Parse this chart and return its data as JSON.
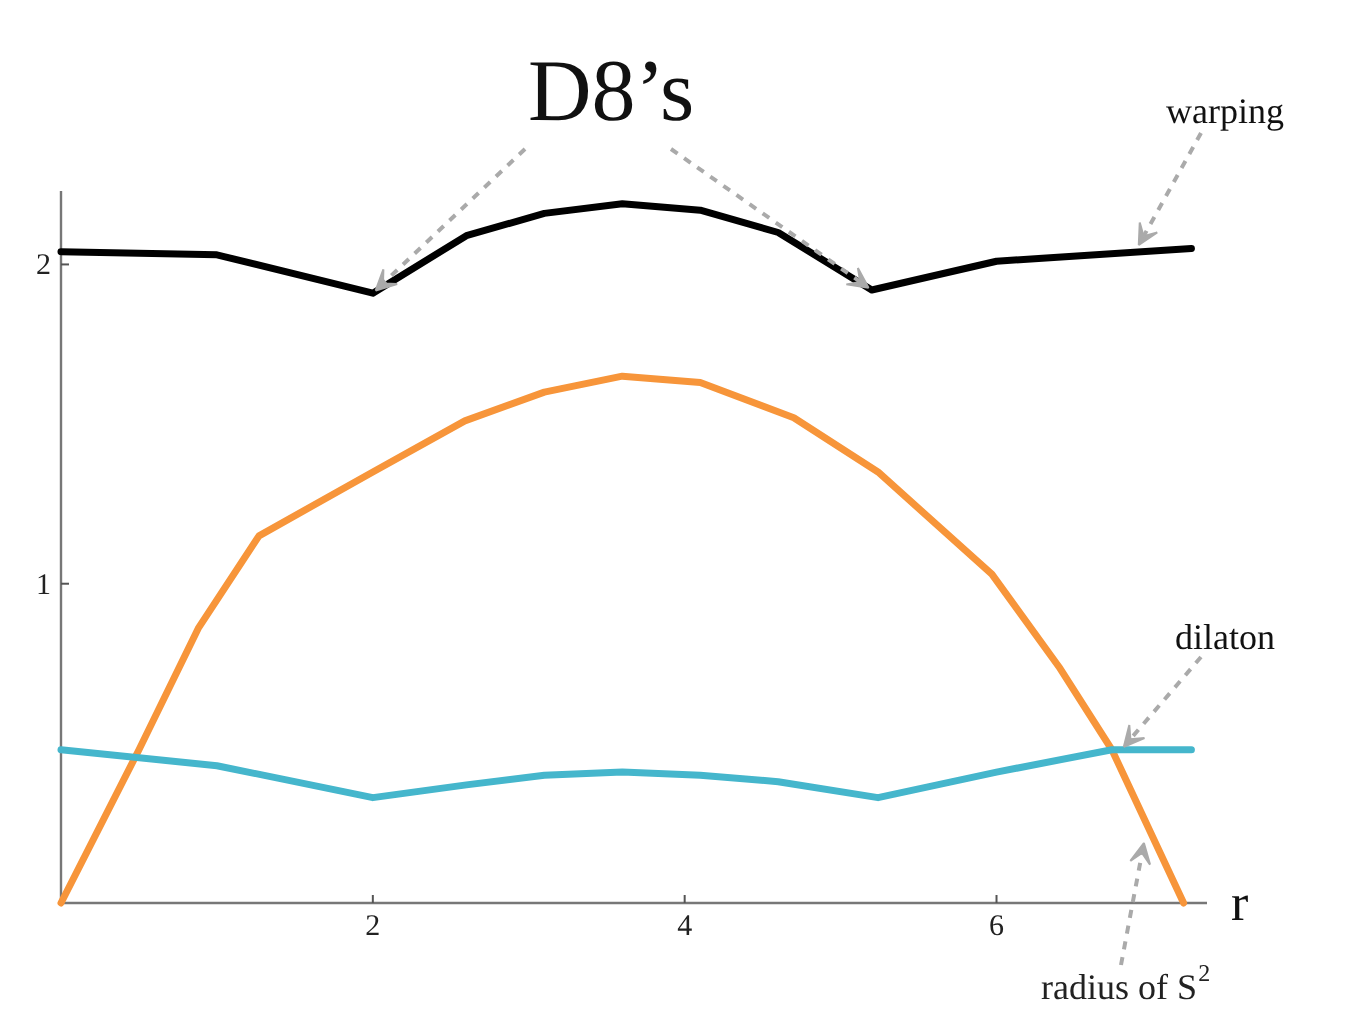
{
  "chart_data": {
    "type": "line",
    "xlabel": "r",
    "xlim": [
      0,
      7.35
    ],
    "ylim": [
      0,
      2.23
    ],
    "xticks": [
      2,
      4,
      6
    ],
    "yticks": [
      1,
      2
    ],
    "grid": false,
    "marker": "none",
    "line_style": "solid",
    "series": [
      {
        "color": "#000000",
        "x": [
          0,
          1,
          2,
          2.6,
          3.1,
          3.6,
          4.1,
          4.6,
          5.2,
          6,
          7.25
        ],
        "values": [
          2.04,
          2.03,
          1.91,
          2.09,
          2.16,
          2.19,
          2.17,
          2.1,
          1.92,
          2.01,
          2.05
        ]
      },
      {
        "color": "#f7953a",
        "x": [
          0,
          0.5,
          0.88,
          1.27,
          2,
          2.59,
          3.1,
          3.6,
          4.1,
          4.7,
          5.24,
          5.97,
          6.4,
          6.74,
          7.2
        ],
        "values": [
          0,
          0.48,
          0.86,
          1.15,
          1.35,
          1.51,
          1.6,
          1.65,
          1.63,
          1.52,
          1.35,
          1.03,
          0.74,
          0.48,
          0
        ]
      },
      {
        "color": "#45b6cc",
        "x": [
          0,
          1,
          2,
          2.6,
          3.1,
          3.6,
          4.1,
          4.6,
          5.24,
          6,
          6.74,
          7.25
        ],
        "values": [
          0.48,
          0.43,
          0.33,
          0.37,
          0.4,
          0.41,
          0.4,
          0.38,
          0.33,
          0.41,
          0.48,
          0.48
        ]
      }
    ],
    "annotations": [
      {
        "text": "D8’s",
        "x": 2,
        "y": 1.91
      },
      {
        "text": "warping",
        "x": 6.9,
        "y": 2.05
      },
      {
        "text": "dilaton",
        "x": 6.8,
        "y": 0.48
      },
      {
        "text": "radius of S$^{2}$",
        "x": 6.95,
        "y": 0.2
      }
    ]
  }
}
